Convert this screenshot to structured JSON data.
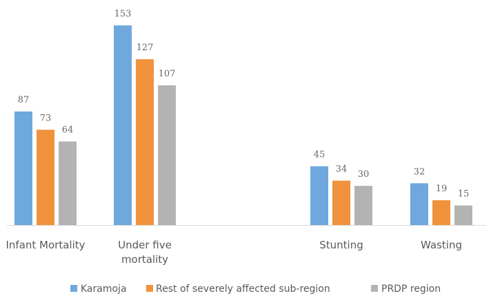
{
  "chart_data": {
    "type": "bar",
    "categories": [
      [
        "Infant Mortality"
      ],
      [
        "Under five",
        "mortality"
      ],
      [],
      [
        "Stunting"
      ],
      [
        "Wasting"
      ]
    ],
    "series": [
      {
        "name": "Karamoja",
        "color": "#6fa8dc",
        "values": [
          87,
          153,
          null,
          45,
          32
        ]
      },
      {
        "name": "Rest of severely affected sub-region",
        "color": "#f0923c",
        "values": [
          73,
          127,
          null,
          34,
          19
        ]
      },
      {
        "name": "PRDP region",
        "color": "#b3b3b3",
        "values": [
          64,
          107,
          null,
          30,
          15
        ]
      }
    ],
    "ylim": [
      0,
      160
    ],
    "grid": false,
    "legend_position": "bottom",
    "data_labels": true,
    "axis_color": "#d9d9d9"
  }
}
